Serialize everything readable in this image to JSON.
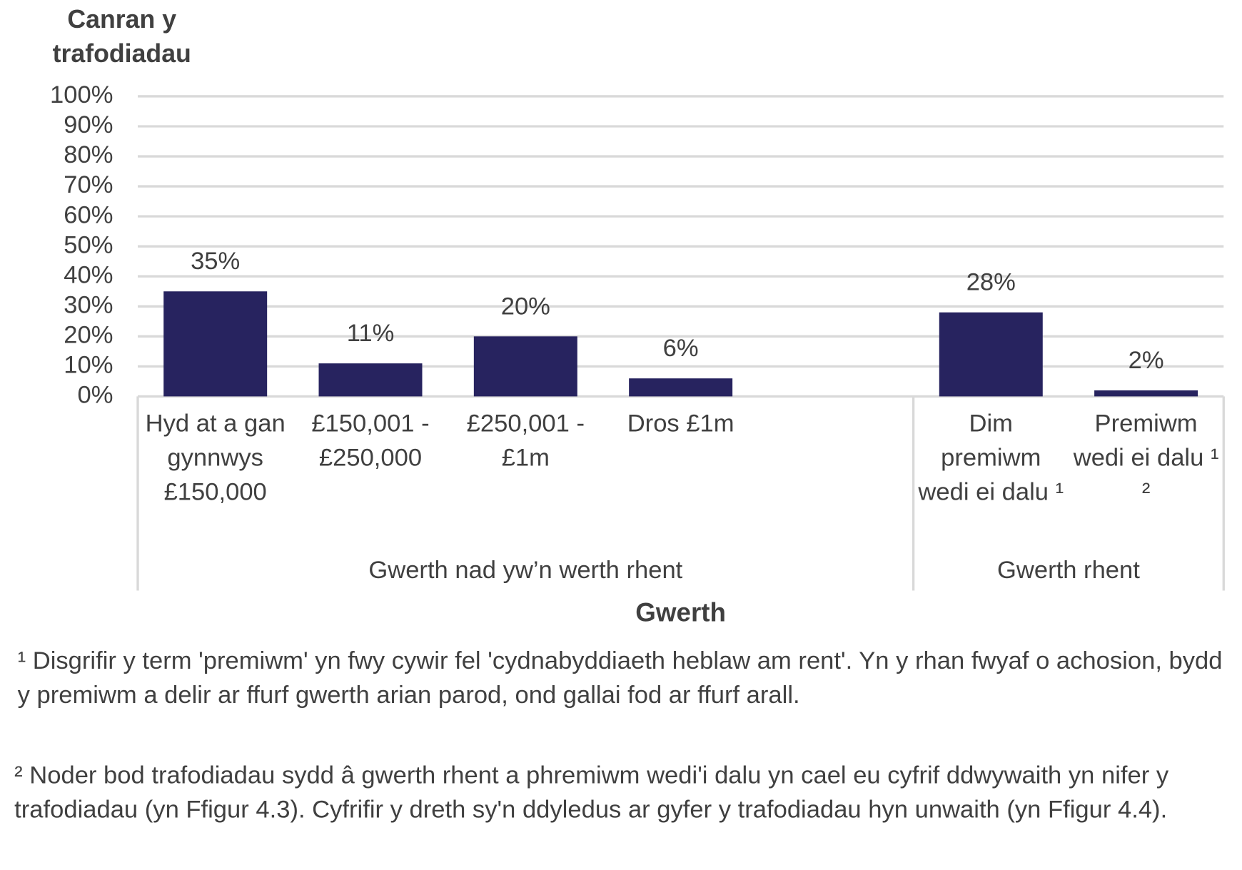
{
  "chart_data": {
    "type": "bar",
    "y_label": "Canran y trafodiadau",
    "x_label": "Gwerth",
    "categories": [
      "Hyd at a gan gynnwys £150,000",
      "£150,001 - £250,000",
      "£250,001 - £1m",
      "Dros £1m",
      null,
      "Dim premiwm wedi ei dalu ¹",
      "Premiwm wedi ei dalu ¹ ²"
    ],
    "values": [
      35,
      11,
      20,
      6,
      null,
      28,
      2
    ],
    "value_labels": [
      "35%",
      "11%",
      "20%",
      "6%",
      null,
      "28%",
      "2%"
    ],
    "groups": [
      {
        "label": "Gwerth nad yw’n werth rhent",
        "span": [
          0,
          4
        ]
      },
      {
        "label": "Gwerth rhent",
        "span": [
          5,
          6
        ]
      }
    ],
    "color": "#27235f",
    "ylim": [
      0,
      100
    ],
    "yticks": [
      {
        "value": 0,
        "label": "0%"
      },
      {
        "value": 10,
        "label": "10%"
      },
      {
        "value": 20,
        "label": "20%"
      },
      {
        "value": 30,
        "label": "30%"
      },
      {
        "value": 40,
        "label": "40%"
      },
      {
        "value": 50,
        "label": "50%"
      },
      {
        "value": 60,
        "label": "60%"
      },
      {
        "value": 70,
        "label": "70%"
      },
      {
        "value": 80,
        "label": "80%"
      },
      {
        "value": 90,
        "label": "90%"
      },
      {
        "value": 100,
        "label": "100%"
      }
    ],
    "grid": true
  },
  "notes": [
    "¹ Disgrifir y term 'premiwm' yn fwy cywir fel 'cydnabyddiaeth heblaw am rent'. Yn y rhan fwyaf o achosion, bydd y premiwm a delir ar ffurf gwerth arian parod, ond gallai fod ar ffurf arall.",
    "² Noder bod trafodiadau sydd â gwerth rhent a phremiwm wedi'i dalu yn cael eu cyfrif ddwywaith yn nifer y trafodiadau (yn Ffigur 4.3). Cyfrifir y dreth sy'n ddyledus ar gyfer y trafodiadau hyn unwaith (yn Ffigur 4.4)."
  ]
}
